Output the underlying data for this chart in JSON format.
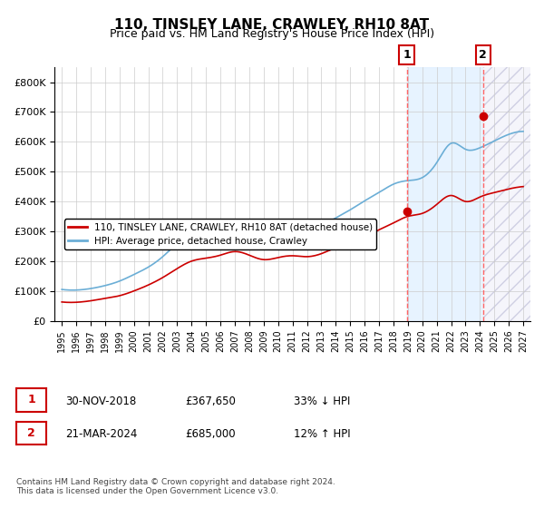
{
  "title": "110, TINSLEY LANE, CRAWLEY, RH10 8AT",
  "subtitle": "Price paid vs. HM Land Registry's House Price Index (HPI)",
  "legend_entry1": "110, TINSLEY LANE, CRAWLEY, RH10 8AT (detached house)",
  "legend_entry2": "HPI: Average price, detached house, Crawley",
  "annotation1_label": "1",
  "annotation1_date": "30-NOV-2018",
  "annotation1_price": "£367,650",
  "annotation1_hpi": "33% ↓ HPI",
  "annotation2_label": "2",
  "annotation2_date": "21-MAR-2024",
  "annotation2_price": "£685,000",
  "annotation2_hpi": "12% ↑ HPI",
  "footer": "Contains HM Land Registry data © Crown copyright and database right 2024.\nThis data is licensed under the Open Government Licence v3.0.",
  "vline1_x": 2018.917,
  "vline2_x": 2024.22,
  "dot1_x": 2018.917,
  "dot1_y": 367650,
  "dot2_x": 2024.22,
  "dot2_y": 685000,
  "ylim": [
    0,
    850000
  ],
  "xlim": [
    1994.5,
    2027.5
  ],
  "hpi_color": "#6baed6",
  "price_color": "#cc0000",
  "vline_color": "#ff6666",
  "bg_shaded_color": "#ddeeff",
  "bg_hatched_color": "#e8e8f8",
  "grid_color": "#cccccc"
}
